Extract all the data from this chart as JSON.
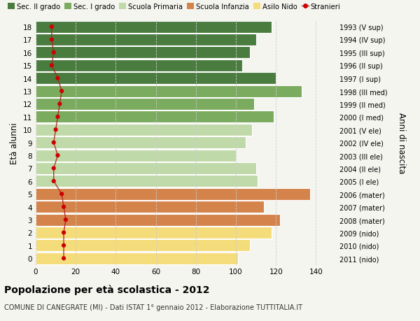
{
  "ages": [
    18,
    17,
    16,
    15,
    14,
    13,
    12,
    11,
    10,
    9,
    8,
    7,
    6,
    5,
    4,
    3,
    2,
    1,
    0
  ],
  "bar_values": [
    118,
    110,
    107,
    103,
    120,
    133,
    109,
    119,
    108,
    105,
    100,
    110,
    111,
    137,
    114,
    122,
    118,
    107,
    101
  ],
  "stranieri_values": [
    8,
    8,
    9,
    8,
    11,
    13,
    12,
    11,
    10,
    9,
    11,
    9,
    9,
    13,
    14,
    15,
    14,
    14,
    14
  ],
  "bar_colors": [
    "#4a7c3f",
    "#4a7c3f",
    "#4a7c3f",
    "#4a7c3f",
    "#4a7c3f",
    "#7aab5e",
    "#7aab5e",
    "#7aab5e",
    "#c0d9a8",
    "#c0d9a8",
    "#c0d9a8",
    "#c0d9a8",
    "#c0d9a8",
    "#d4834a",
    "#d4834a",
    "#d4834a",
    "#f5dc7a",
    "#f5dc7a",
    "#f5dc7a"
  ],
  "right_labels": [
    "1993 (V sup)",
    "1994 (IV sup)",
    "1995 (III sup)",
    "1996 (II sup)",
    "1997 (I sup)",
    "1998 (III med)",
    "1999 (II med)",
    "2000 (I med)",
    "2001 (V ele)",
    "2002 (IV ele)",
    "2003 (III ele)",
    "2004 (II ele)",
    "2005 (I ele)",
    "2006 (mater)",
    "2007 (mater)",
    "2008 (mater)",
    "2009 (nido)",
    "2010 (nido)",
    "2011 (nido)"
  ],
  "legend_labels": [
    "Sec. II grado",
    "Sec. I grado",
    "Scuola Primaria",
    "Scuola Infanzia",
    "Asilo Nido",
    "Stranieri"
  ],
  "legend_colors": [
    "#4a7c3f",
    "#7aab5e",
    "#c0d9a8",
    "#d4834a",
    "#f5dc7a",
    "#cc0000"
  ],
  "ylabel": "Età alunni",
  "right_ylabel": "Anni di nascita",
  "title": "Popolazione per età scolastica - 2012",
  "subtitle": "COMUNE DI CANEGRATE (MI) - Dati ISTAT 1° gennaio 2012 - Elaborazione TUTTITALIA.IT",
  "xlim": [
    0,
    150
  ],
  "xticks": [
    0,
    20,
    40,
    60,
    80,
    100,
    120,
    140
  ],
  "bg_color": "#f5f5f0",
  "grid_color": "#cccccc",
  "stranieri_color": "#cc0000",
  "stranieri_line_color": "#aa2222",
  "bar_edge_color": "white",
  "bar_height": 0.92
}
